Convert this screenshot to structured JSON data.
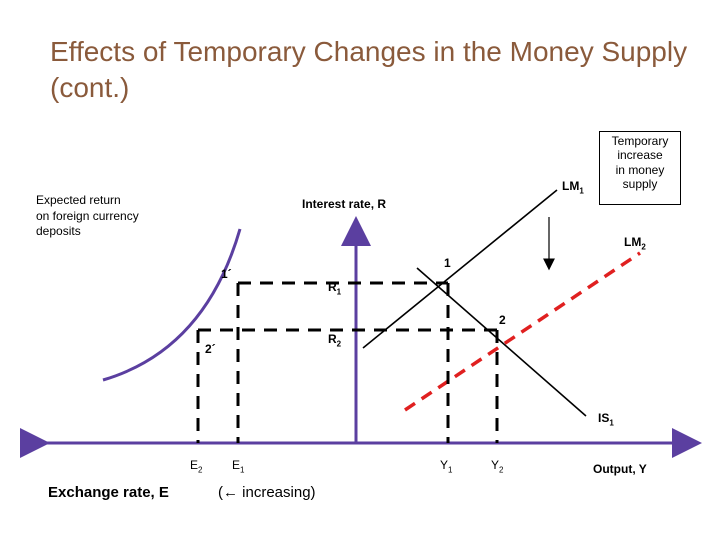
{
  "slide": {
    "title": "Effects of Temporary Changes in the Money Supply (cont.)"
  },
  "diagram": {
    "left_ylabel": [
      "Expected return",
      "on foreign currency",
      "deposits"
    ],
    "right_ylabel": "Interest rate, R",
    "left_xlabel": "Exchange rate, E",
    "left_xnote": "(← increasing)",
    "right_xlabel": "Output, Y",
    "callout": [
      "Temporary",
      "increase",
      "in money",
      "supply"
    ],
    "curves": {
      "lm1": {
        "name": "LM",
        "sub": "1"
      },
      "lm2": {
        "name": "LM",
        "sub": "2"
      },
      "is1": {
        "name": "IS",
        "sub": "1"
      }
    },
    "points": {
      "p1": "1",
      "p2": "2",
      "p1p": "1´",
      "p2p": "2´"
    },
    "rates": {
      "r1": {
        "name": "R",
        "sub": "1"
      },
      "r2": {
        "name": "R",
        "sub": "2"
      }
    },
    "ticks": {
      "e2": {
        "name": "E",
        "sub": "2"
      },
      "e1": {
        "name": "E",
        "sub": "1"
      },
      "y1": {
        "name": "Y",
        "sub": "1"
      },
      "y2": {
        "name": "Y",
        "sub": "2"
      }
    },
    "colors": {
      "title": "#8a5a3b",
      "lm2": "#e02020",
      "curves": "#5b3fa0",
      "axes": "#5b3fa0",
      "lines": "#000000"
    }
  }
}
